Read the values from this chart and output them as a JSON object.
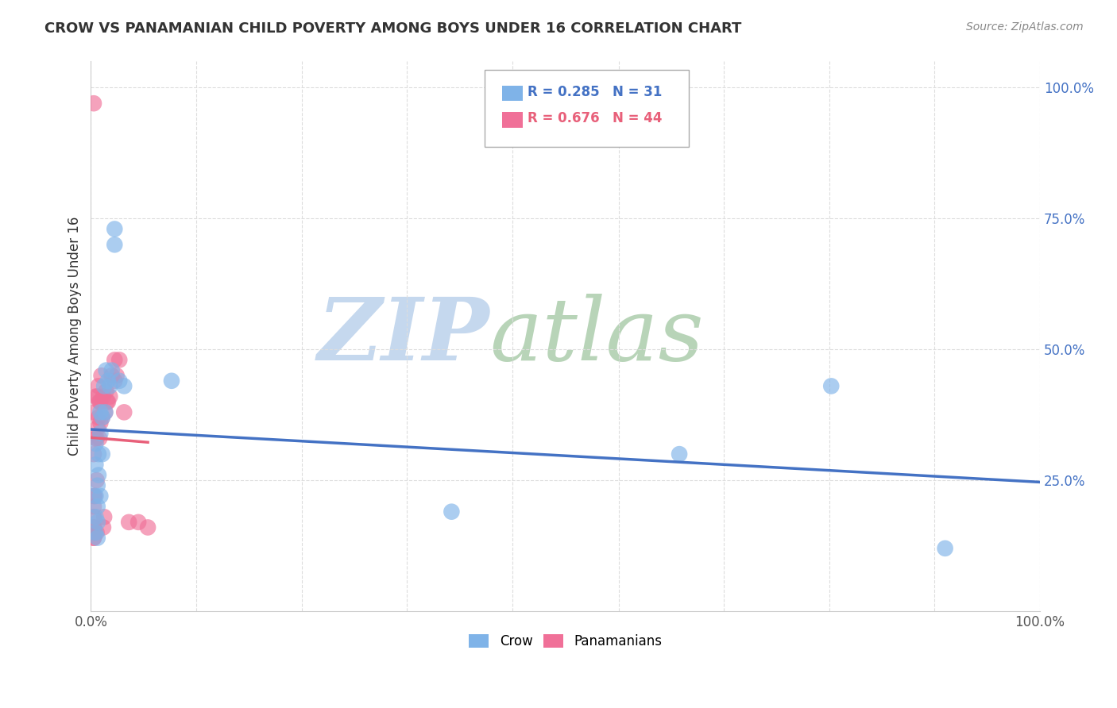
{
  "title": "CROW VS PANAMANIAN CHILD POVERTY AMONG BOYS UNDER 16 CORRELATION CHART",
  "source": "Source: ZipAtlas.com",
  "ylabel": "Child Poverty Among Boys Under 16",
  "xlim": [
    0,
    1
  ],
  "ylim": [
    0,
    1.05
  ],
  "xtick_labels": [
    "0.0%",
    "",
    "",
    "",
    "",
    "",
    "",
    "",
    "",
    "100.0%"
  ],
  "xtick_vals": [
    0,
    0.111,
    0.222,
    0.333,
    0.444,
    0.556,
    0.667,
    0.778,
    0.889,
    1.0
  ],
  "ytick_labels": [
    "100.0%",
    "75.0%",
    "50.0%",
    "25.0%"
  ],
  "ytick_vals": [
    1.0,
    0.75,
    0.5,
    0.25
  ],
  "crow_R": 0.285,
  "crow_N": 31,
  "pana_R": 0.676,
  "pana_N": 44,
  "crow_color": "#7fb3e8",
  "pana_color": "#f07098",
  "crow_line_color": "#4472c4",
  "pana_line_color": "#e8607a",
  "watermark_zip": "ZIP",
  "watermark_atlas": "atlas",
  "watermark_color_zip": "#c8d8ee",
  "watermark_color_atlas": "#c8d8c8",
  "crow_x": [
    0.005,
    0.005,
    0.005,
    0.005,
    0.005,
    0.007,
    0.007,
    0.007,
    0.007,
    0.008,
    0.008,
    0.01,
    0.01,
    0.01,
    0.012,
    0.012,
    0.014,
    0.015,
    0.016,
    0.018,
    0.02,
    0.022,
    0.025,
    0.025,
    0.03,
    0.035,
    0.085,
    0.38,
    0.62,
    0.78,
    0.9
  ],
  "crow_y": [
    0.22,
    0.28,
    0.32,
    0.15,
    0.18,
    0.2,
    0.24,
    0.14,
    0.17,
    0.26,
    0.3,
    0.34,
    0.38,
    0.22,
    0.3,
    0.37,
    0.43,
    0.38,
    0.46,
    0.44,
    0.43,
    0.46,
    0.7,
    0.73,
    0.44,
    0.43,
    0.44,
    0.19,
    0.3,
    0.43,
    0.12
  ],
  "pana_x": [
    0.003,
    0.003,
    0.003,
    0.003,
    0.003,
    0.003,
    0.003,
    0.003,
    0.003,
    0.004,
    0.004,
    0.004,
    0.005,
    0.005,
    0.006,
    0.006,
    0.006,
    0.007,
    0.007,
    0.008,
    0.008,
    0.009,
    0.009,
    0.01,
    0.01,
    0.011,
    0.012,
    0.013,
    0.013,
    0.014,
    0.015,
    0.016,
    0.017,
    0.018,
    0.02,
    0.022,
    0.025,
    0.027,
    0.03,
    0.035,
    0.04,
    0.05,
    0.06,
    0.025
  ],
  "pana_y": [
    0.14,
    0.16,
    0.18,
    0.2,
    0.22,
    0.14,
    0.16,
    0.3,
    0.97,
    0.15,
    0.22,
    0.38,
    0.33,
    0.41,
    0.15,
    0.25,
    0.33,
    0.35,
    0.41,
    0.37,
    0.43,
    0.33,
    0.4,
    0.36,
    0.4,
    0.45,
    0.37,
    0.41,
    0.16,
    0.18,
    0.38,
    0.42,
    0.4,
    0.4,
    0.41,
    0.45,
    0.44,
    0.45,
    0.48,
    0.38,
    0.17,
    0.17,
    0.16,
    0.48
  ],
  "background_color": "#ffffff",
  "grid_color": "#dddddd"
}
